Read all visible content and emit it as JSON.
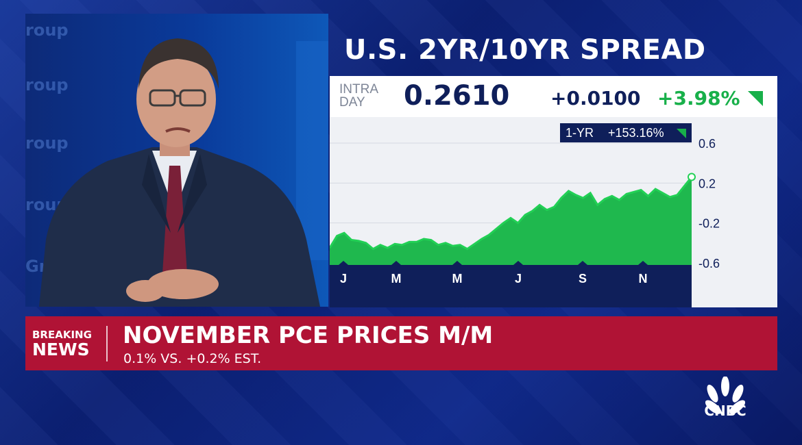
{
  "broadcast": {
    "network_logo": "CNBC",
    "colors": {
      "background": "#0c2277",
      "banner": "#b01335",
      "navy": "#0f1f5a",
      "up_green": "#18b04a",
      "area_fill": "#1fb84e"
    }
  },
  "video": {
    "wall_texts": [
      "roup",
      "roup",
      "roup",
      "roup",
      "Gr"
    ]
  },
  "ticker": {
    "intraday_label": "INTRA DAY",
    "value": "0.2610",
    "change": "+0.0100",
    "change_pct": "+3.98%",
    "direction_icon": "up-triangle-icon",
    "one_year_label": "1-YR",
    "one_year_change": "+153.16%"
  },
  "chart_data": {
    "type": "area",
    "title": "U.S. 2YR/10YR SPREAD",
    "x_tick_labels": [
      "J",
      "M",
      "M",
      "J",
      "S",
      "N"
    ],
    "y_tick_labels": [
      "0.6",
      "0.2",
      "-0.2",
      "-0.6"
    ],
    "ylim": [
      -0.6,
      0.6
    ],
    "grid": "horizontal",
    "last_value": 0.261,
    "x": [
      0,
      2,
      4,
      6,
      8,
      10,
      12,
      14,
      16,
      18,
      20,
      22,
      24,
      26,
      28,
      30,
      32,
      34,
      36,
      38,
      40,
      42,
      44,
      46,
      48,
      50,
      52,
      54,
      56,
      58,
      60,
      62,
      64,
      66,
      68,
      70,
      72,
      74,
      76,
      78,
      80,
      82,
      84,
      86,
      88,
      90,
      92,
      94,
      96,
      98,
      100
    ],
    "y": [
      -0.45,
      -0.33,
      -0.3,
      -0.37,
      -0.38,
      -0.4,
      -0.46,
      -0.42,
      -0.45,
      -0.41,
      -0.42,
      -0.39,
      -0.39,
      -0.36,
      -0.37,
      -0.42,
      -0.4,
      -0.43,
      -0.42,
      -0.46,
      -0.41,
      -0.36,
      -0.32,
      -0.26,
      -0.2,
      -0.15,
      -0.2,
      -0.12,
      -0.08,
      -0.02,
      -0.07,
      -0.04,
      0.05,
      0.12,
      0.08,
      0.05,
      0.1,
      -0.02,
      0.04,
      0.07,
      0.03,
      0.09,
      0.11,
      0.13,
      0.07,
      0.14,
      0.1,
      0.06,
      0.08,
      0.17,
      0.26
    ]
  },
  "banner": {
    "breaking_label": "BREAKING",
    "news_label": "NEWS",
    "headline": "NOVEMBER PCE PRICES M/M",
    "subheadline": "0.1% VS. +0.2% EST."
  }
}
